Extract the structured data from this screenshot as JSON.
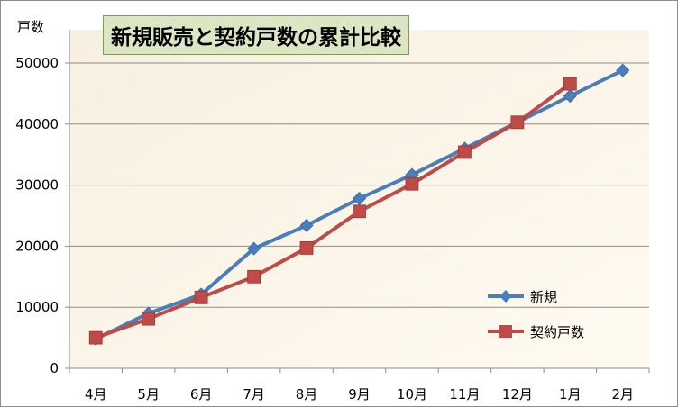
{
  "chart_data": {
    "type": "line",
    "title": "新規販売と契約戸数の累計比較",
    "ylabel": "戸数",
    "xlabel": "",
    "categories": [
      "4月",
      "5月",
      "6月",
      "7月",
      "8月",
      "9月",
      "10月",
      "11月",
      "12月",
      "1月",
      "2月"
    ],
    "ylim": [
      0,
      50000
    ],
    "yticks": [
      0,
      10000,
      20000,
      30000,
      40000,
      50000
    ],
    "grid": true,
    "legend_position": "right",
    "series": [
      {
        "name": "新規",
        "color": "#4a7ebb",
        "marker": "diamond",
        "values": [
          4800,
          9000,
          12100,
          19600,
          23400,
          27800,
          31700,
          36000,
          40300,
          44600,
          48800
        ]
      },
      {
        "name": "契約戸数",
        "color": "#be4b48",
        "marker": "square",
        "values": [
          5000,
          8100,
          11600,
          15000,
          19700,
          25700,
          30200,
          35400,
          40300,
          46600,
          null
        ]
      }
    ]
  }
}
